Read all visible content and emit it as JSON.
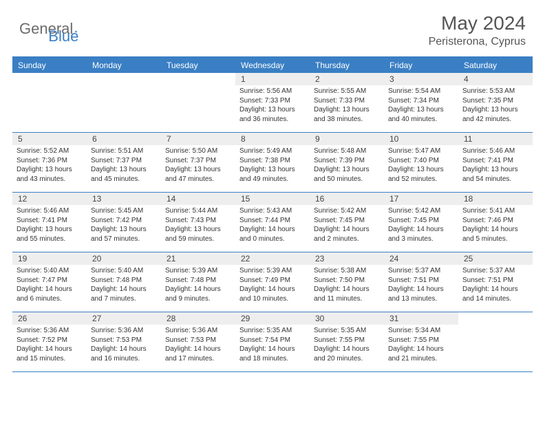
{
  "brand": {
    "part1": "General",
    "part2": "Blue"
  },
  "title": "May 2024",
  "location": "Peristerona, Cyprus",
  "colors": {
    "header_bg": "#3a7fc4",
    "header_text": "#ffffff",
    "daynum_bg": "#eeeeee",
    "body_text": "#333333",
    "logo_gray": "#6b6b6b"
  },
  "dayNames": [
    "Sunday",
    "Monday",
    "Tuesday",
    "Wednesday",
    "Thursday",
    "Friday",
    "Saturday"
  ],
  "weeks": [
    [
      {
        "num": "",
        "lines": []
      },
      {
        "num": "",
        "lines": []
      },
      {
        "num": "",
        "lines": []
      },
      {
        "num": "1",
        "lines": [
          "Sunrise: 5:56 AM",
          "Sunset: 7:33 PM",
          "Daylight: 13 hours",
          "and 36 minutes."
        ]
      },
      {
        "num": "2",
        "lines": [
          "Sunrise: 5:55 AM",
          "Sunset: 7:33 PM",
          "Daylight: 13 hours",
          "and 38 minutes."
        ]
      },
      {
        "num": "3",
        "lines": [
          "Sunrise: 5:54 AM",
          "Sunset: 7:34 PM",
          "Daylight: 13 hours",
          "and 40 minutes."
        ]
      },
      {
        "num": "4",
        "lines": [
          "Sunrise: 5:53 AM",
          "Sunset: 7:35 PM",
          "Daylight: 13 hours",
          "and 42 minutes."
        ]
      }
    ],
    [
      {
        "num": "5",
        "lines": [
          "Sunrise: 5:52 AM",
          "Sunset: 7:36 PM",
          "Daylight: 13 hours",
          "and 43 minutes."
        ]
      },
      {
        "num": "6",
        "lines": [
          "Sunrise: 5:51 AM",
          "Sunset: 7:37 PM",
          "Daylight: 13 hours",
          "and 45 minutes."
        ]
      },
      {
        "num": "7",
        "lines": [
          "Sunrise: 5:50 AM",
          "Sunset: 7:37 PM",
          "Daylight: 13 hours",
          "and 47 minutes."
        ]
      },
      {
        "num": "8",
        "lines": [
          "Sunrise: 5:49 AM",
          "Sunset: 7:38 PM",
          "Daylight: 13 hours",
          "and 49 minutes."
        ]
      },
      {
        "num": "9",
        "lines": [
          "Sunrise: 5:48 AM",
          "Sunset: 7:39 PM",
          "Daylight: 13 hours",
          "and 50 minutes."
        ]
      },
      {
        "num": "10",
        "lines": [
          "Sunrise: 5:47 AM",
          "Sunset: 7:40 PM",
          "Daylight: 13 hours",
          "and 52 minutes."
        ]
      },
      {
        "num": "11",
        "lines": [
          "Sunrise: 5:46 AM",
          "Sunset: 7:41 PM",
          "Daylight: 13 hours",
          "and 54 minutes."
        ]
      }
    ],
    [
      {
        "num": "12",
        "lines": [
          "Sunrise: 5:46 AM",
          "Sunset: 7:41 PM",
          "Daylight: 13 hours",
          "and 55 minutes."
        ]
      },
      {
        "num": "13",
        "lines": [
          "Sunrise: 5:45 AM",
          "Sunset: 7:42 PM",
          "Daylight: 13 hours",
          "and 57 minutes."
        ]
      },
      {
        "num": "14",
        "lines": [
          "Sunrise: 5:44 AM",
          "Sunset: 7:43 PM",
          "Daylight: 13 hours",
          "and 59 minutes."
        ]
      },
      {
        "num": "15",
        "lines": [
          "Sunrise: 5:43 AM",
          "Sunset: 7:44 PM",
          "Daylight: 14 hours",
          "and 0 minutes."
        ]
      },
      {
        "num": "16",
        "lines": [
          "Sunrise: 5:42 AM",
          "Sunset: 7:45 PM",
          "Daylight: 14 hours",
          "and 2 minutes."
        ]
      },
      {
        "num": "17",
        "lines": [
          "Sunrise: 5:42 AM",
          "Sunset: 7:45 PM",
          "Daylight: 14 hours",
          "and 3 minutes."
        ]
      },
      {
        "num": "18",
        "lines": [
          "Sunrise: 5:41 AM",
          "Sunset: 7:46 PM",
          "Daylight: 14 hours",
          "and 5 minutes."
        ]
      }
    ],
    [
      {
        "num": "19",
        "lines": [
          "Sunrise: 5:40 AM",
          "Sunset: 7:47 PM",
          "Daylight: 14 hours",
          "and 6 minutes."
        ]
      },
      {
        "num": "20",
        "lines": [
          "Sunrise: 5:40 AM",
          "Sunset: 7:48 PM",
          "Daylight: 14 hours",
          "and 7 minutes."
        ]
      },
      {
        "num": "21",
        "lines": [
          "Sunrise: 5:39 AM",
          "Sunset: 7:48 PM",
          "Daylight: 14 hours",
          "and 9 minutes."
        ]
      },
      {
        "num": "22",
        "lines": [
          "Sunrise: 5:39 AM",
          "Sunset: 7:49 PM",
          "Daylight: 14 hours",
          "and 10 minutes."
        ]
      },
      {
        "num": "23",
        "lines": [
          "Sunrise: 5:38 AM",
          "Sunset: 7:50 PM",
          "Daylight: 14 hours",
          "and 11 minutes."
        ]
      },
      {
        "num": "24",
        "lines": [
          "Sunrise: 5:37 AM",
          "Sunset: 7:51 PM",
          "Daylight: 14 hours",
          "and 13 minutes."
        ]
      },
      {
        "num": "25",
        "lines": [
          "Sunrise: 5:37 AM",
          "Sunset: 7:51 PM",
          "Daylight: 14 hours",
          "and 14 minutes."
        ]
      }
    ],
    [
      {
        "num": "26",
        "lines": [
          "Sunrise: 5:36 AM",
          "Sunset: 7:52 PM",
          "Daylight: 14 hours",
          "and 15 minutes."
        ]
      },
      {
        "num": "27",
        "lines": [
          "Sunrise: 5:36 AM",
          "Sunset: 7:53 PM",
          "Daylight: 14 hours",
          "and 16 minutes."
        ]
      },
      {
        "num": "28",
        "lines": [
          "Sunrise: 5:36 AM",
          "Sunset: 7:53 PM",
          "Daylight: 14 hours",
          "and 17 minutes."
        ]
      },
      {
        "num": "29",
        "lines": [
          "Sunrise: 5:35 AM",
          "Sunset: 7:54 PM",
          "Daylight: 14 hours",
          "and 18 minutes."
        ]
      },
      {
        "num": "30",
        "lines": [
          "Sunrise: 5:35 AM",
          "Sunset: 7:55 PM",
          "Daylight: 14 hours",
          "and 20 minutes."
        ]
      },
      {
        "num": "31",
        "lines": [
          "Sunrise: 5:34 AM",
          "Sunset: 7:55 PM",
          "Daylight: 14 hours",
          "and 21 minutes."
        ]
      },
      {
        "num": "",
        "lines": []
      }
    ]
  ]
}
